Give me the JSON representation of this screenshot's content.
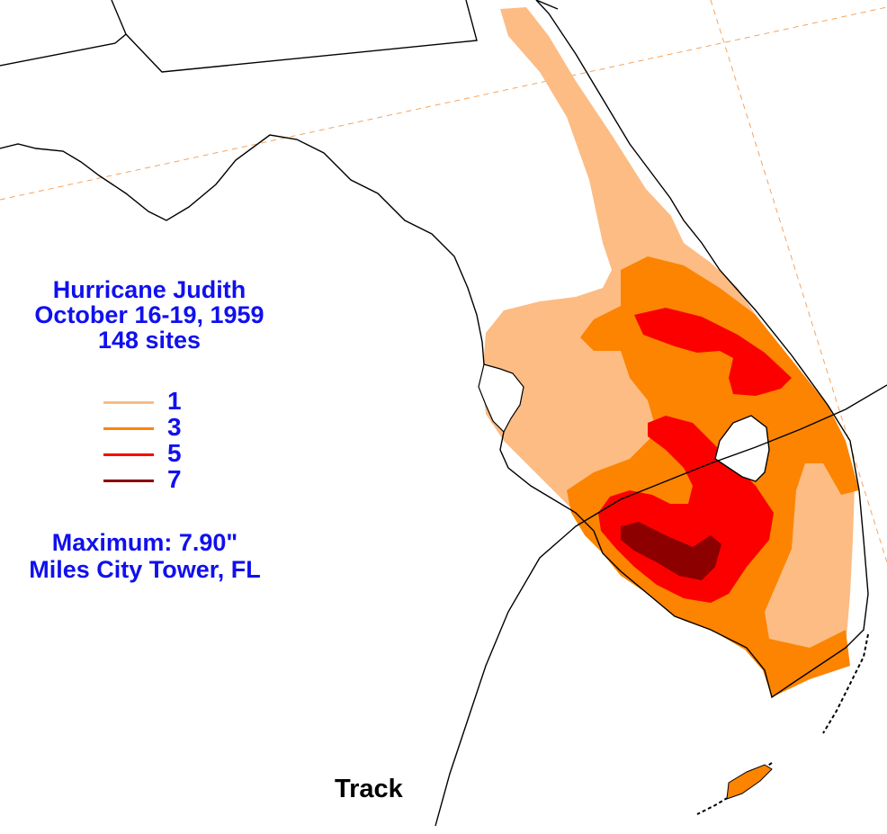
{
  "title": {
    "line1": "Hurricane Judith",
    "line2": "October 16-19, 1959",
    "line3": "148 sites"
  },
  "legend": {
    "items": [
      {
        "label": "1",
        "color": "#fcbc84"
      },
      {
        "label": "3",
        "color": "#fc8400"
      },
      {
        "label": "5",
        "color": "#fc0000"
      },
      {
        "label": "7",
        "color": "#8c0000"
      }
    ]
  },
  "maximum": {
    "line1": "Maximum:  7.90\"",
    "line2": "Miles City Tower, FL"
  },
  "track": {
    "label": "Track"
  },
  "colors": {
    "text": "#1010ee",
    "coast": "#000000",
    "graticule": "#f4a460",
    "track": "#000000"
  }
}
